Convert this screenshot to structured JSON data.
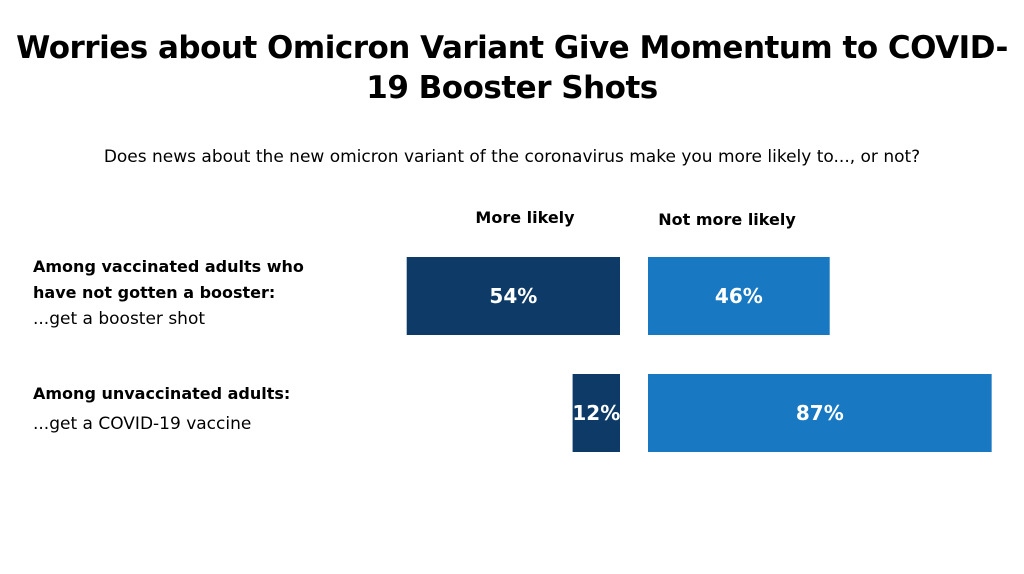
{
  "chart_data": {
    "type": "bar",
    "title": "Worries about Omicron Variant Give Momentum to COVID-19 Booster Shots",
    "subtitle": "Does news about the new omicron variant of the coronavirus make you more likely to..., or not?",
    "series": [
      {
        "name": "More likely",
        "values": [
          54,
          12
        ],
        "color": "#0d3a66"
      },
      {
        "name": "Not more likely",
        "values": [
          46,
          87
        ],
        "color": "#1878c2"
      }
    ],
    "categories": [
      {
        "group_lines": [
          "Among vaccinated adults who",
          "have not gotten a booster:"
        ],
        "action": "...get a booster shot"
      },
      {
        "group_lines": [
          "Among unvaccinated adults:"
        ],
        "action": "...get a COVID-19 vaccine"
      }
    ],
    "value_suffix": "%",
    "legend_placement": "top",
    "grid": false
  },
  "colors": {
    "more_likely": "#0d3a66",
    "not_more_likely": "#1878c2",
    "label_text": "#ffffff"
  }
}
